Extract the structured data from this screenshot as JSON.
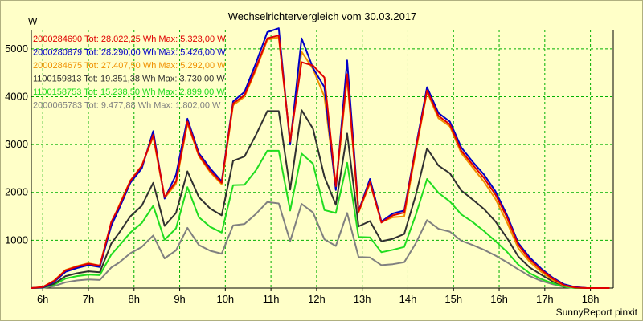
{
  "chart_data": {
    "type": "line",
    "title": "Wechselrichtervergleich vom 30.03.2017",
    "ylabel": "W",
    "footer": "SunnyReport pinxit",
    "ylim": [
      0,
      5400
    ],
    "yticks": [
      1000,
      2000,
      3000,
      4000,
      5000
    ],
    "xlim": [
      5.75,
      18.5
    ],
    "xticks": [
      {
        "value": 6,
        "label": "6h"
      },
      {
        "value": 7,
        "label": "7h"
      },
      {
        "value": 8,
        "label": "8h"
      },
      {
        "value": 9,
        "label": "9h"
      },
      {
        "value": 10,
        "label": "10h"
      },
      {
        "value": 11,
        "label": "11h"
      },
      {
        "value": 12,
        "label": "12h"
      },
      {
        "value": 13,
        "label": "13h"
      },
      {
        "value": 14,
        "label": "14h"
      },
      {
        "value": 15,
        "label": "15h"
      },
      {
        "value": 16,
        "label": "16h"
      },
      {
        "value": 17,
        "label": "17h"
      },
      {
        "value": 18,
        "label": "18h"
      }
    ],
    "grid": true,
    "legend_position": "top-left",
    "x": [
      5.75,
      6.0,
      6.25,
      6.5,
      6.75,
      7.0,
      7.25,
      7.5,
      7.67,
      7.92,
      8.17,
      8.42,
      8.67,
      8.92,
      9.17,
      9.42,
      9.67,
      9.92,
      10.17,
      10.42,
      10.67,
      10.92,
      11.17,
      11.42,
      11.67,
      11.92,
      12.17,
      12.42,
      12.67,
      12.92,
      13.17,
      13.42,
      13.67,
      13.92,
      14.17,
      14.42,
      14.67,
      14.92,
      15.17,
      15.42,
      15.67,
      15.92,
      16.17,
      16.42,
      16.67,
      16.92,
      17.17,
      17.42,
      17.67,
      17.92,
      18.17,
      18.42
    ],
    "series": [
      {
        "name": "2000284690 Tot: 28.022,25 Wh Max: 5.323,00 W",
        "color": "#e00000",
        "values": [
          0,
          20,
          150,
          370,
          450,
          510,
          470,
          1380,
          1700,
          2240,
          2550,
          3200,
          1900,
          2230,
          3480,
          2780,
          2450,
          2200,
          3860,
          4030,
          4600,
          5220,
          5280,
          3060,
          4720,
          4650,
          4400,
          2130,
          4470,
          1600,
          2220,
          1370,
          1520,
          1580,
          2890,
          4130,
          3600,
          3420,
          2870,
          2580,
          2300,
          1950,
          1480,
          900,
          600,
          380,
          200,
          60,
          10,
          0,
          0,
          0
        ]
      },
      {
        "name": "2000280879 Tot: 28.290,00 Wh Max: 5.426,00 W",
        "color": "#0000c8",
        "values": [
          0,
          15,
          130,
          340,
          420,
          480,
          440,
          1300,
          1650,
          2200,
          2500,
          3280,
          1870,
          2370,
          3540,
          2820,
          2500,
          2230,
          3900,
          4100,
          4700,
          5350,
          5430,
          3000,
          5220,
          4600,
          4200,
          2050,
          4760,
          1610,
          2280,
          1390,
          1560,
          1620,
          2930,
          4200,
          3660,
          3480,
          2940,
          2640,
          2370,
          2020,
          1530,
          940,
          640,
          410,
          220,
          80,
          20,
          0,
          0,
          0
        ]
      },
      {
        "name": "2000284675 Tot: 27.407,50 Wh Max: 5.292,00 W",
        "color": "#f09000",
        "values": [
          0,
          20,
          160,
          380,
          460,
          520,
          470,
          1340,
          1720,
          2250,
          2560,
          3160,
          1880,
          2180,
          3440,
          2760,
          2420,
          2170,
          3820,
          4000,
          4560,
          5190,
          5240,
          3080,
          4940,
          4580,
          4000,
          2090,
          4380,
          1580,
          2190,
          1380,
          1480,
          1500,
          2840,
          4100,
          3550,
          3380,
          2820,
          2520,
          2220,
          1860,
          1380,
          830,
          550,
          340,
          170,
          50,
          10,
          0,
          0,
          0
        ]
      },
      {
        "name": "1100159813 Tot: 19.351,38 Wh Max: 3.730,00 W",
        "color": "#303030",
        "values": [
          0,
          10,
          90,
          250,
          310,
          350,
          330,
          930,
          1150,
          1500,
          1720,
          2200,
          1300,
          1570,
          2440,
          1900,
          1660,
          1520,
          2660,
          2750,
          3200,
          3700,
          3700,
          2060,
          3720,
          3330,
          2330,
          1740,
          3230,
          1290,
          1400,
          980,
          1030,
          1130,
          1930,
          2920,
          2560,
          2400,
          2040,
          1850,
          1650,
          1390,
          1050,
          660,
          430,
          280,
          140,
          50,
          10,
          0,
          0,
          0
        ]
      },
      {
        "name": "1100158753 Tot: 15.238,50 Wh Max: 2.899,00 W",
        "color": "#20dc20",
        "values": [
          0,
          10,
          70,
          200,
          250,
          280,
          270,
          700,
          880,
          1160,
          1360,
          1720,
          1010,
          1250,
          2110,
          1480,
          1280,
          1160,
          2150,
          2160,
          2460,
          2870,
          2870,
          1620,
          2810,
          2600,
          1630,
          1570,
          2620,
          1070,
          1060,
          750,
          800,
          860,
          1520,
          2280,
          1990,
          1810,
          1540,
          1380,
          1190,
          980,
          760,
          490,
          310,
          190,
          100,
          30,
          0,
          0,
          0,
          0
        ]
      },
      {
        "name": "2000065783 Tot: 9.477,88 Wh Max: 1.802,00 W",
        "color": "#808080",
        "values": [
          0,
          5,
          40,
          120,
          160,
          180,
          170,
          430,
          530,
          730,
          860,
          1100,
          620,
          790,
          1260,
          900,
          780,
          720,
          1310,
          1340,
          1550,
          1800,
          1770,
          980,
          1760,
          1580,
          1020,
          880,
          1570,
          650,
          640,
          480,
          500,
          540,
          930,
          1420,
          1240,
          1180,
          990,
          900,
          800,
          680,
          540,
          390,
          250,
          150,
          80,
          25,
          0,
          0,
          0,
          0
        ]
      }
    ]
  }
}
